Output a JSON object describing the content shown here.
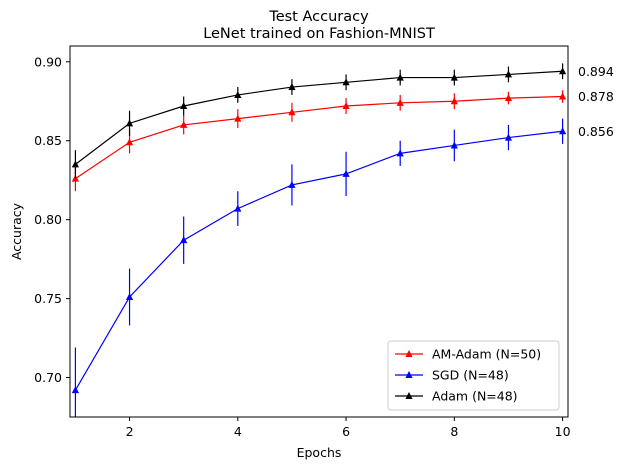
{
  "chart_data": {
    "type": "line",
    "title": "Test Accuracy",
    "subtitle": "LeNet trained on Fashion-MNIST",
    "xlabel": "Epochs",
    "ylabel": "Accuracy",
    "xlim": [
      0.9,
      10.1
    ],
    "ylim": [
      0.675,
      0.91
    ],
    "xticks": [
      2,
      4,
      6,
      8,
      10
    ],
    "xtick_labels": [
      "2",
      "4",
      "6",
      "8",
      "10"
    ],
    "yticks": [
      0.7,
      0.75,
      0.8,
      0.85,
      0.9
    ],
    "ytick_labels": [
      "0.70",
      "0.75",
      "0.80",
      "0.85",
      "0.90"
    ],
    "grid": false,
    "legend_position": "lower-right",
    "x": [
      1,
      2,
      3,
      4,
      5,
      6,
      7,
      8,
      9,
      10
    ],
    "series": [
      {
        "name": "AM-Adam (N=50)",
        "color": "#ff0000",
        "values": [
          0.826,
          0.849,
          0.86,
          0.864,
          0.868,
          0.872,
          0.874,
          0.875,
          0.877,
          0.878
        ],
        "errors": [
          0.008,
          0.007,
          0.006,
          0.006,
          0.006,
          0.005,
          0.005,
          0.005,
          0.004,
          0.004
        ]
      },
      {
        "name": "SGD (N=48)",
        "color": "#0000ff",
        "values": [
          0.692,
          0.751,
          0.787,
          0.807,
          0.822,
          0.829,
          0.842,
          0.847,
          0.852,
          0.856
        ],
        "errors": [
          0.027,
          0.018,
          0.015,
          0.011,
          0.013,
          0.014,
          0.008,
          0.01,
          0.008,
          0.008
        ]
      },
      {
        "name": "Adam (N=48)",
        "color": "#000000",
        "values": [
          0.835,
          0.861,
          0.872,
          0.879,
          0.884,
          0.887,
          0.89,
          0.89,
          0.892,
          0.894
        ],
        "errors": [
          0.009,
          0.008,
          0.006,
          0.005,
          0.005,
          0.005,
          0.005,
          0.005,
          0.005,
          0.005
        ]
      }
    ],
    "end_labels": [
      {
        "text": "0.894",
        "value": 0.894
      },
      {
        "text": "0.878",
        "value": 0.878
      },
      {
        "text": "0.856",
        "value": 0.856
      }
    ]
  }
}
